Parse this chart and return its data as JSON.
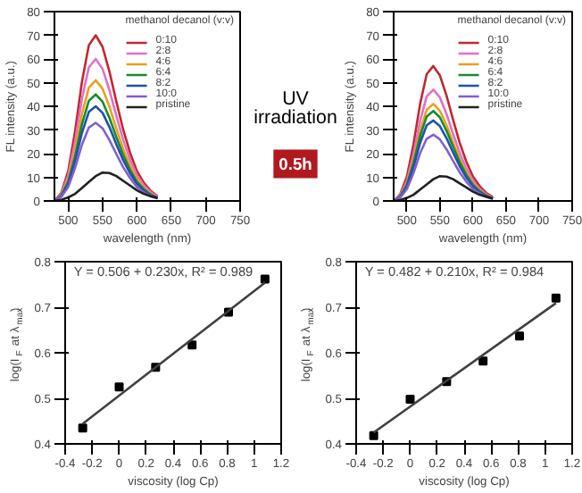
{
  "chart_data": [
    {
      "type": "line",
      "xlabel": "wavelength (nm)",
      "ylabel": "FL intensity (a.u.)",
      "legend_title": "methanol decanol (v:v)",
      "legend": "top right",
      "x": [
        480,
        490,
        500,
        510,
        520,
        530,
        540,
        550,
        560,
        570,
        580,
        590,
        600,
        610,
        620,
        630
      ],
      "xlim": [
        480,
        750
      ],
      "xticks": [
        500,
        550,
        600,
        650,
        700,
        750
      ],
      "ylim": [
        0,
        80
      ],
      "yticks": [
        0,
        10,
        20,
        30,
        40,
        50,
        60,
        70,
        80
      ],
      "series": [
        {
          "name": "0:10",
          "color": "#c0282d",
          "values": [
            0,
            3.5,
            12.6,
            29.4,
            50.4,
            65.8,
            70,
            65.1,
            54.6,
            42,
            30.1,
            20.3,
            12.6,
            7.7,
            4.2,
            2.1
          ]
        },
        {
          "name": "2:8",
          "color": "#e070c8",
          "values": [
            0,
            3,
            10.8,
            25.2,
            43.2,
            56.4,
            60,
            55.8,
            46.8,
            36,
            25.8,
            17.4,
            10.8,
            6.6,
            3.6,
            1.8
          ]
        },
        {
          "name": "4:6",
          "color": "#e8a020",
          "values": [
            0,
            2.6,
            9.2,
            21.4,
            36.7,
            47.9,
            51,
            47.4,
            39.8,
            30.6,
            21.9,
            14.8,
            9.2,
            5.6,
            3.1,
            1.5
          ]
        },
        {
          "name": "6:4",
          "color": "#1a8a2a",
          "values": [
            0,
            2.3,
            8.1,
            18.9,
            32.4,
            42.3,
            45,
            41.9,
            35.1,
            27,
            19.4,
            13.1,
            8.1,
            5,
            2.7,
            1.4
          ]
        },
        {
          "name": "8:2",
          "color": "#2050b0",
          "values": [
            0,
            2,
            7.2,
            16.8,
            28.8,
            37.6,
            40,
            37.2,
            31.2,
            24,
            17.2,
            11.6,
            7.2,
            4.4,
            2.4,
            1.2
          ]
        },
        {
          "name": "10:0",
          "color": "#8060d0",
          "values": [
            0,
            1.7,
            5.9,
            13.9,
            23.8,
            31,
            33,
            30.7,
            25.7,
            19.8,
            14.2,
            9.6,
            5.9,
            3.6,
            2,
            1
          ]
        },
        {
          "name": "pristine",
          "color": "#202020",
          "values": [
            0,
            0.5,
            1.5,
            3,
            5.5,
            8,
            10.5,
            12,
            11.8,
            10.5,
            8.5,
            6.5,
            4.5,
            3,
            2,
            1.2
          ]
        }
      ]
    },
    {
      "type": "other",
      "annotations": [
        "UV irradiation",
        "0.5h"
      ]
    },
    {
      "type": "line",
      "xlabel": "wavelength (nm)",
      "ylabel": "FL intensity (a.u.)",
      "legend_title": "methanol decanol (v:v)",
      "legend": "top right",
      "x": [
        480,
        490,
        500,
        510,
        520,
        530,
        540,
        550,
        560,
        570,
        580,
        590,
        600,
        610,
        620,
        630
      ],
      "xlim": [
        480,
        750
      ],
      "xticks": [
        500,
        550,
        600,
        650,
        700,
        750
      ],
      "ylim": [
        0,
        80
      ],
      "yticks": [
        0,
        10,
        20,
        30,
        40,
        50,
        60,
        70,
        80
      ],
      "series": [
        {
          "name": "0:10",
          "color": "#c0282d",
          "values": [
            0,
            2.9,
            10.3,
            23.9,
            41,
            53.6,
            57,
            53,
            44.5,
            34.2,
            24.5,
            16.5,
            10.3,
            6.3,
            3.4,
            1.7
          ]
        },
        {
          "name": "2:8",
          "color": "#e070c8",
          "values": [
            0,
            2.4,
            8.5,
            19.7,
            33.8,
            44.2,
            47,
            43.7,
            36.7,
            28.2,
            20.2,
            13.6,
            8.5,
            5.2,
            2.8,
            1.4
          ]
        },
        {
          "name": "4:6",
          "color": "#e8a020",
          "values": [
            0,
            2.1,
            7.4,
            17.2,
            29.5,
            38.5,
            41,
            38.1,
            32,
            24.6,
            17.6,
            11.9,
            7.4,
            4.5,
            2.5,
            1.2
          ]
        },
        {
          "name": "6:4",
          "color": "#1a8a2a",
          "values": [
            0,
            1.9,
            6.8,
            16,
            27.4,
            35.7,
            38,
            35.3,
            29.6,
            22.8,
            16.3,
            11,
            6.8,
            4.2,
            2.3,
            1.1
          ]
        },
        {
          "name": "8:2",
          "color": "#2050b0",
          "values": [
            0,
            1.7,
            6.1,
            14.3,
            24.5,
            32,
            34,
            31.6,
            26.5,
            20.4,
            14.6,
            9.9,
            6.1,
            3.7,
            2,
            1
          ]
        },
        {
          "name": "10:0",
          "color": "#8060d0",
          "values": [
            0,
            1.4,
            5,
            11.8,
            20.2,
            26.3,
            28,
            26,
            21.8,
            16.8,
            12,
            8.1,
            5,
            3.1,
            1.7,
            0.8
          ]
        },
        {
          "name": "pristine",
          "color": "#202020",
          "values": [
            0,
            0.4,
            1.3,
            2.6,
            4.8,
            7,
            9.2,
            10.5,
            10.3,
            9.2,
            7.4,
            5.7,
            3.9,
            2.6,
            1.8,
            1
          ]
        }
      ]
    },
    {
      "type": "scatter",
      "marker": "square",
      "xlabel": "viscosity (log Cp)",
      "ylabel": "log(I$_{F}$ at λ$_{max}$)",
      "xlim": [
        -0.4,
        1.2
      ],
      "xticks": [
        -0.4,
        -0.2,
        0.0,
        0.2,
        0.4,
        0.6,
        0.8,
        1.0,
        1.2
      ],
      "ylim": [
        0.4,
        0.8
      ],
      "yticks": [
        0.4,
        0.5,
        0.6,
        0.7,
        0.8
      ],
      "annotations": [
        "Y = 0.506 + 0.230x, R² = 0.989"
      ],
      "series": [
        {
          "color": "#000000",
          "x": [
            -0.27,
            0.0,
            0.27,
            0.54,
            0.81,
            1.08
          ],
          "values": [
            0.435,
            0.525,
            0.568,
            0.617,
            0.689,
            0.762
          ]
        },
        {
          "type": "line",
          "marker": "none",
          "color": "#404040",
          "x": [
            -0.27,
            1.08
          ],
          "values": [
            0.444,
            0.754
          ]
        }
      ]
    },
    {
      "type": "scatter",
      "marker": "square",
      "xlabel": "viscosity (log Cp)",
      "ylabel": "log(I$_{F}$ at λ$_{max}$)",
      "xlim": [
        -0.4,
        1.2
      ],
      "xticks": [
        -0.4,
        -0.2,
        0.0,
        0.2,
        0.4,
        0.6,
        0.8,
        1.0,
        1.2
      ],
      "ylim": [
        0.4,
        0.8
      ],
      "yticks": [
        0.4,
        0.5,
        0.6,
        0.7,
        0.8
      ],
      "annotations": [
        "Y = 0.482 + 0.210x, R² = 0.984"
      ],
      "series": [
        {
          "color": "#000000",
          "x": [
            -0.27,
            0.0,
            0.27,
            0.54,
            0.81,
            1.08
          ],
          "values": [
            0.418,
            0.498,
            0.537,
            0.582,
            0.637,
            0.72
          ]
        },
        {
          "type": "line",
          "marker": "none",
          "color": "#404040",
          "x": [
            -0.27,
            1.08
          ],
          "values": [
            0.425,
            0.709
          ]
        }
      ]
    }
  ]
}
